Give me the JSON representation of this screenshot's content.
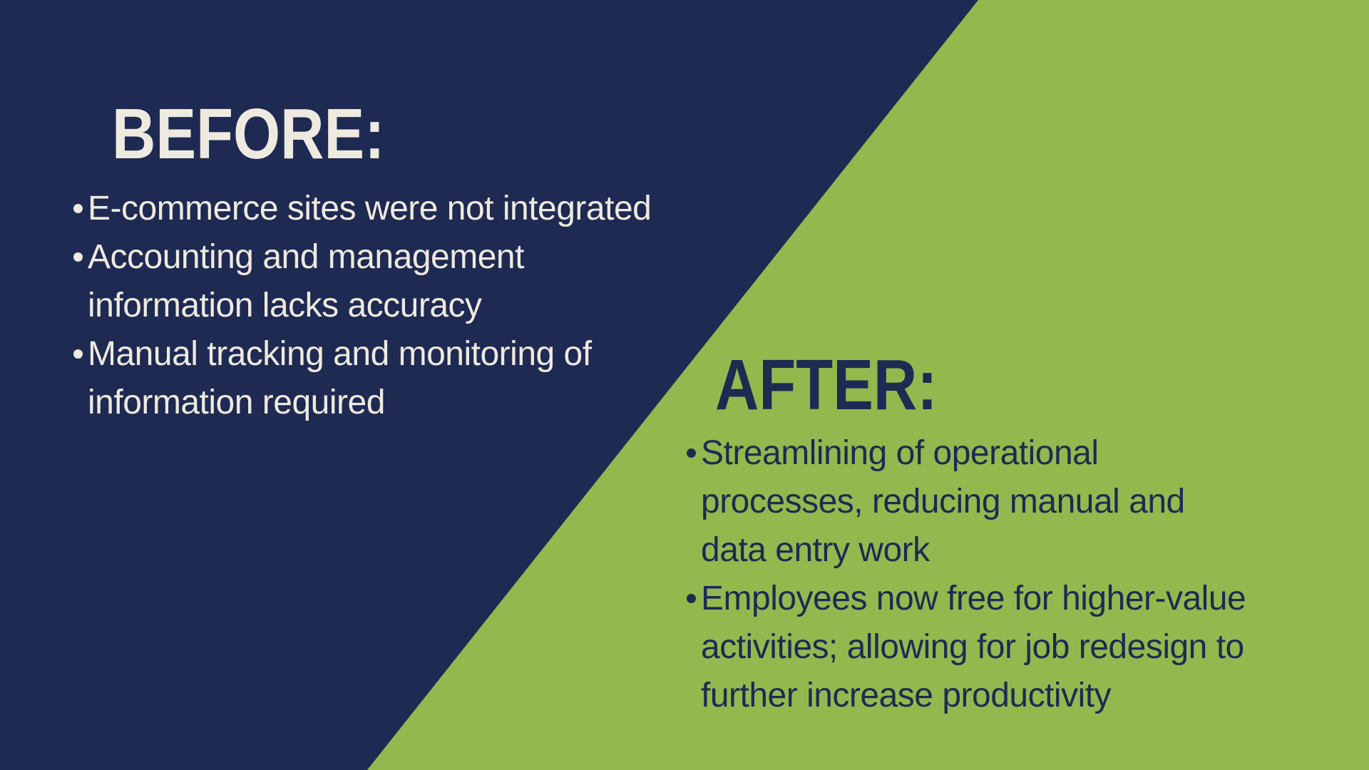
{
  "colors": {
    "navy": "#1e2a52",
    "green": "#94b84e",
    "cream": "#eeeadf"
  },
  "before": {
    "heading": "BEFORE:",
    "items": [
      {
        "text": "E-commerce sites were not integrated"
      },
      {
        "text": "Accounting and management\ninformation lacks accuracy"
      },
      {
        "text": "Manual tracking and monitoring of\ninformation required"
      }
    ]
  },
  "after": {
    "heading": "AFTER:",
    "items": [
      {
        "text": "Streamlining of operational\nprocesses, reducing manual and\ndata entry work"
      },
      {
        "text": "Employees now free for higher-value\nactivities; allowing for job redesign to\nfurther increase productivity"
      }
    ]
  }
}
